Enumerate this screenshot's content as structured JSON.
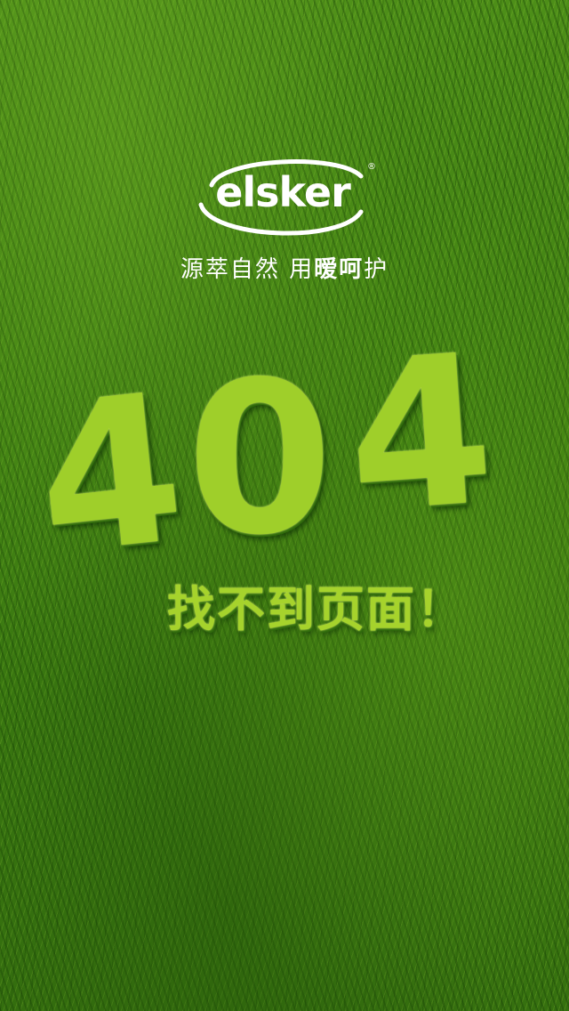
{
  "brand": {
    "name": "elsker",
    "registered_mark": "®",
    "slogan_part1": "源萃自然 用",
    "slogan_highlight": "暧呵",
    "slogan_part2": "护"
  },
  "error": {
    "code_chars": [
      "4",
      "0",
      "4"
    ],
    "message": "找不到页面！"
  },
  "colors": {
    "background": "#3f7d12",
    "text_green": "#9fcf2a",
    "logo_text": "#ffffff"
  }
}
